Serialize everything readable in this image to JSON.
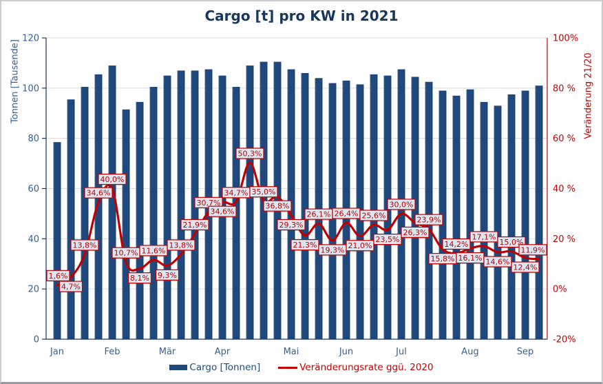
{
  "chart_data": {
    "type": "combo-bar-line",
    "title": "Cargo [t] pro KW in 2021",
    "week_index": [
      1,
      2,
      3,
      4,
      5,
      6,
      7,
      8,
      9,
      10,
      11,
      12,
      13,
      14,
      15,
      16,
      17,
      18,
      19,
      20,
      21,
      22,
      23,
      24,
      25,
      26,
      27,
      28,
      29,
      30,
      31,
      32,
      33,
      34,
      35,
      36
    ],
    "bar_series": {
      "name": "Cargo [Tonnen]",
      "axis": "left",
      "unit": "Tonnen [Tausende]",
      "values": [
        78.5,
        95.5,
        100.5,
        105.5,
        109,
        91.5,
        94.5,
        100.5,
        105,
        107,
        107,
        107.5,
        105,
        100.5,
        109,
        110.5,
        110.5,
        107.5,
        106,
        104,
        102,
        103,
        101.5,
        105.5,
        105,
        107.5,
        104.5,
        102.5,
        99,
        97,
        99.5,
        94.5,
        93,
        97.5,
        99,
        101
      ]
    },
    "line_series": {
      "name": "Veränderungsrate ggü. 2020",
      "axis": "right",
      "values_pct": [
        1.6,
        4.7,
        13.8,
        34.6,
        40.0,
        10.7,
        8.1,
        11.6,
        9.3,
        13.8,
        21.9,
        30.7,
        34.6,
        34.7,
        50.3,
        35.0,
        36.8,
        29.3,
        21.3,
        26.1,
        19.3,
        26.4,
        21.0,
        25.6,
        23.5,
        30.0,
        26.3,
        23.9,
        15.8,
        14.2,
        16.1,
        17.1,
        14.6,
        15.0,
        12.4,
        11.9
      ],
      "labels": [
        "1,6%",
        "4,7%",
        "13,8%",
        "34,6%",
        "40,0%",
        "10,7%",
        "8,1%",
        "11,6%",
        "9,3%",
        "13,8%",
        "21,9%",
        "30,7%",
        "34,6%",
        "34,7%",
        "50,3%",
        "35,0%",
        "36,8%",
        "29,3%",
        "21,3%",
        "26,1%",
        "19,3%",
        "26,4%",
        "21,0%",
        "25,6%",
        "23,5%",
        "30,0%",
        "26,3%",
        "23,9%",
        "15,8%",
        "14,2%",
        "16,1%",
        "17,1%",
        "14,6%",
        "15,0%",
        "12,4%",
        "11,9%"
      ],
      "label_side": [
        "above",
        "below",
        "above",
        "above",
        "above",
        "above",
        "below",
        "above",
        "below",
        "above",
        "above",
        "above",
        "below",
        "above",
        "above",
        "above",
        "below",
        "below",
        "below",
        "above",
        "below",
        "above",
        "below",
        "above",
        "below",
        "above",
        "below",
        "above",
        "below",
        "above",
        "below",
        "above",
        "below",
        "above",
        "below",
        "above"
      ]
    },
    "left_axis": {
      "label": "Tonnen [Tausende]",
      "min": 0,
      "max": 120,
      "step": 20,
      "ticks": [
        "120",
        "100",
        "80",
        "60",
        "40",
        "20",
        "0"
      ]
    },
    "right_axis": {
      "label": "Veränderung 21/20",
      "min": -20,
      "max": 100,
      "step": 20,
      "ticks": [
        "100%",
        "80 %",
        "60 %",
        "40 %",
        "20 %",
        "0%",
        "-20%"
      ]
    },
    "x_axis": {
      "month_labels": [
        "Jan",
        "Feb",
        "Mär",
        "Apr",
        "Mai",
        "Jun",
        "Jul",
        "Aug",
        "Sep"
      ],
      "month_tick_bar_index": [
        0,
        4,
        8,
        12,
        17,
        21,
        25,
        30,
        34
      ]
    },
    "grid": true,
    "legend_position": "bottom",
    "colors": {
      "bar": "#1F497D",
      "bar_edge_light": "#4A6E9C",
      "bar_edge_dark": "#1B3F6E",
      "line": "#C00000",
      "label_box_fill": "#DCE6F1",
      "label_box_border": "#C00000",
      "label_text": "#C00000",
      "axis_text_blue": "#365F91",
      "axis_line_blue": "#17375E",
      "axis_text_red": "#C00000",
      "title": "#17375E",
      "grid": "#D9D9D9"
    }
  }
}
